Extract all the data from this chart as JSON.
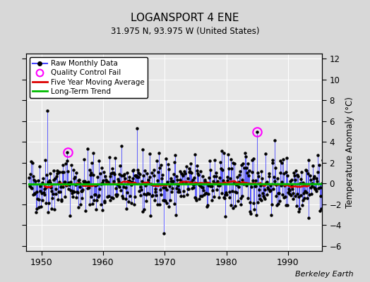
{
  "title": "LOGANSPORT 4 ENE",
  "subtitle": "31.975 N, 93.975 W (United States)",
  "ylabel": "Temperature Anomaly (°C)",
  "watermark": "Berkeley Earth",
  "xlim": [
    1947.5,
    1995.5
  ],
  "ylim": [
    -6.5,
    12.5
  ],
  "yticks": [
    -6,
    -4,
    -2,
    0,
    2,
    4,
    6,
    8,
    10,
    12
  ],
  "xticks": [
    1950,
    1960,
    1970,
    1980,
    1990
  ],
  "bg_color": "#d8d8d8",
  "plot_bg_color": "#e8e8e8",
  "raw_line_color": "#4444ff",
  "raw_dot_color": "#000000",
  "ma_color": "#dd0000",
  "trend_color": "#00bb00",
  "qc_fail_color": "#ff00ff",
  "qc_fail_points": [
    [
      1954.25,
      3.0
    ],
    [
      1985.0,
      5.0
    ]
  ],
  "seed": 42,
  "start_year": 1948,
  "end_year": 1995
}
